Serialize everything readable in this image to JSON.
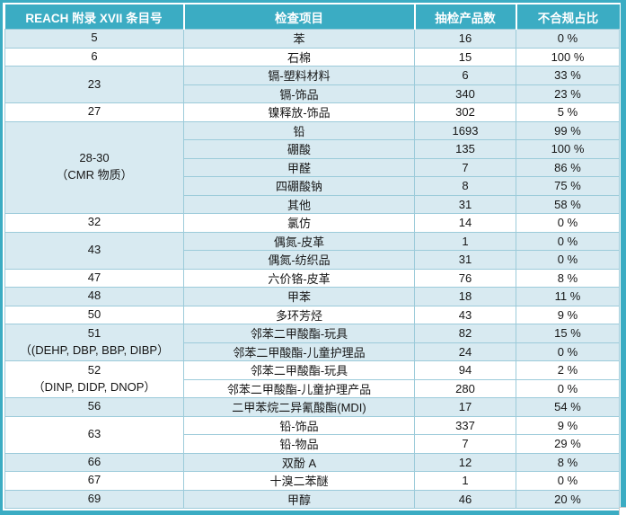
{
  "colors": {
    "header_bg": "#3BACC3",
    "outer_border": "#3BACC3",
    "row_shaded": "#D8EAF1",
    "grid_line": "#9CCBDA",
    "header_text": "#FFFFFF",
    "body_text": "#161616"
  },
  "table": {
    "headers": {
      "entry": "REACH 附录 XVII 条目号",
      "item": "检查项目",
      "count": "抽检产品数",
      "ratio": "不合规占比"
    },
    "groups": [
      {
        "entry": "5",
        "note": "",
        "items": [
          {
            "item": "苯",
            "count": "16",
            "ratio": "0 %"
          }
        ]
      },
      {
        "entry": "6",
        "note": "",
        "items": [
          {
            "item": "石棉",
            "count": "15",
            "ratio": "100 %"
          }
        ]
      },
      {
        "entry": "23",
        "note": "",
        "items": [
          {
            "item": "镉-塑料材料",
            "count": "6",
            "ratio": "33 %"
          },
          {
            "item": "镉-饰品",
            "count": "340",
            "ratio": "23 %"
          }
        ]
      },
      {
        "entry": "27",
        "note": "",
        "items": [
          {
            "item": "镍释放-饰品",
            "count": "302",
            "ratio": "5 %"
          }
        ]
      },
      {
        "entry": "28-30",
        "note": "（CMR 物质）",
        "items": [
          {
            "item": "铅",
            "count": "1693",
            "ratio": "99 %"
          },
          {
            "item": "硼酸",
            "count": "135",
            "ratio": "100 %"
          },
          {
            "item": "甲醛",
            "count": "7",
            "ratio": "86 %"
          },
          {
            "item": "四硼酸钠",
            "count": "8",
            "ratio": "75 %"
          },
          {
            "item": "其他",
            "count": "31",
            "ratio": "58 %"
          }
        ]
      },
      {
        "entry": "32",
        "note": "",
        "items": [
          {
            "item": "氯仿",
            "count": "14",
            "ratio": "0 %"
          }
        ]
      },
      {
        "entry": "43",
        "note": "",
        "items": [
          {
            "item": "偶氮-皮革",
            "count": "1",
            "ratio": "0 %"
          },
          {
            "item": "偶氮-纺织品",
            "count": "31",
            "ratio": "0 %"
          }
        ]
      },
      {
        "entry": "47",
        "note": "",
        "items": [
          {
            "item": "六价铬-皮革",
            "count": "76",
            "ratio": "8 %"
          }
        ]
      },
      {
        "entry": "48",
        "note": "",
        "items": [
          {
            "item": "甲苯",
            "count": "18",
            "ratio": "11 %"
          }
        ]
      },
      {
        "entry": "50",
        "note": "",
        "items": [
          {
            "item": "多环芳烃",
            "count": "43",
            "ratio": "9 %"
          }
        ]
      },
      {
        "entry": "51",
        "note": "（(DEHP, DBP, BBP, DIBP）",
        "items": [
          {
            "item": "邻苯二甲酸酯-玩具",
            "count": "82",
            "ratio": "15 %"
          },
          {
            "item": "邻苯二甲酸酯-儿童护理品",
            "count": "24",
            "ratio": "0 %"
          }
        ]
      },
      {
        "entry": "52",
        "note": "（DINP, DIDP, DNOP）",
        "items": [
          {
            "item": "邻苯二甲酸酯-玩具",
            "count": "94",
            "ratio": "2 %"
          },
          {
            "item": "邻苯二甲酸酯-儿童护理产品",
            "count": "280",
            "ratio": "0 %"
          }
        ]
      },
      {
        "entry": "56",
        "note": "",
        "items": [
          {
            "item": "二甲苯烷二异氰酸酯(MDI)",
            "count": "17",
            "ratio": "54 %"
          }
        ]
      },
      {
        "entry": "63",
        "note": "",
        "items": [
          {
            "item": "铅-饰品",
            "count": "337",
            "ratio": "9 %"
          },
          {
            "item": "铅-物品",
            "count": "7",
            "ratio": "29 %"
          }
        ]
      },
      {
        "entry": "66",
        "note": "",
        "items": [
          {
            "item": "双酚 A",
            "count": "12",
            "ratio": "8 %"
          }
        ]
      },
      {
        "entry": "67",
        "note": "",
        "items": [
          {
            "item": "十溴二苯醚",
            "count": "1",
            "ratio": "0 %"
          }
        ]
      },
      {
        "entry": "69",
        "note": "",
        "items": [
          {
            "item": "甲醇",
            "count": "46",
            "ratio": "20 %"
          }
        ]
      }
    ]
  }
}
